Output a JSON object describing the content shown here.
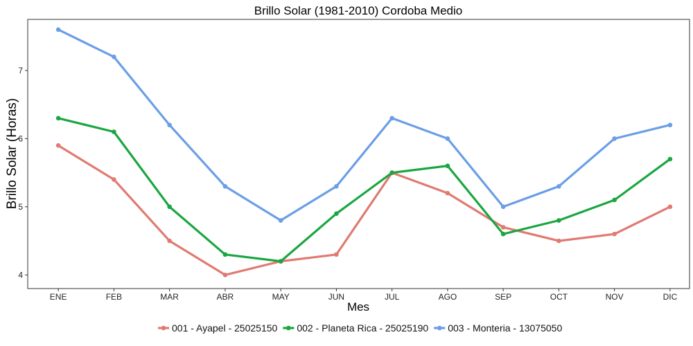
{
  "chart_data": {
    "type": "line",
    "title": "Brillo Solar (1981-2010)  Cordoba Medio",
    "xlabel": "Mes",
    "ylabel": "Brillo Solar (Horas)",
    "categories": [
      "ENE",
      "FEB",
      "MAR",
      "ABR",
      "MAY",
      "JUN",
      "JUL",
      "AGO",
      "SEP",
      "OCT",
      "NOV",
      "DIC"
    ],
    "ylim": [
      3.8,
      7.75
    ],
    "yticks": [
      4,
      5,
      6,
      7
    ],
    "grid": false,
    "legend_position": "bottom",
    "series": [
      {
        "name": "001 - Ayapel - 25025150",
        "color": "#e07a72",
        "values": [
          5.9,
          5.4,
          4.5,
          4.0,
          4.2,
          4.3,
          5.5,
          5.2,
          4.7,
          4.5,
          4.6,
          5.0
        ]
      },
      {
        "name": "002 - Planeta Rica - 25025190",
        "color": "#1aa640",
        "values": [
          6.3,
          6.1,
          5.0,
          4.3,
          4.2,
          4.9,
          5.5,
          5.6,
          4.6,
          4.8,
          5.1,
          5.7
        ]
      },
      {
        "name": "003 - Monteria - 13075050",
        "color": "#6a9ee6",
        "values": [
          7.6,
          7.2,
          6.2,
          5.3,
          4.8,
          5.3,
          6.3,
          6.0,
          5.0,
          5.3,
          6.0,
          6.2
        ]
      }
    ]
  }
}
